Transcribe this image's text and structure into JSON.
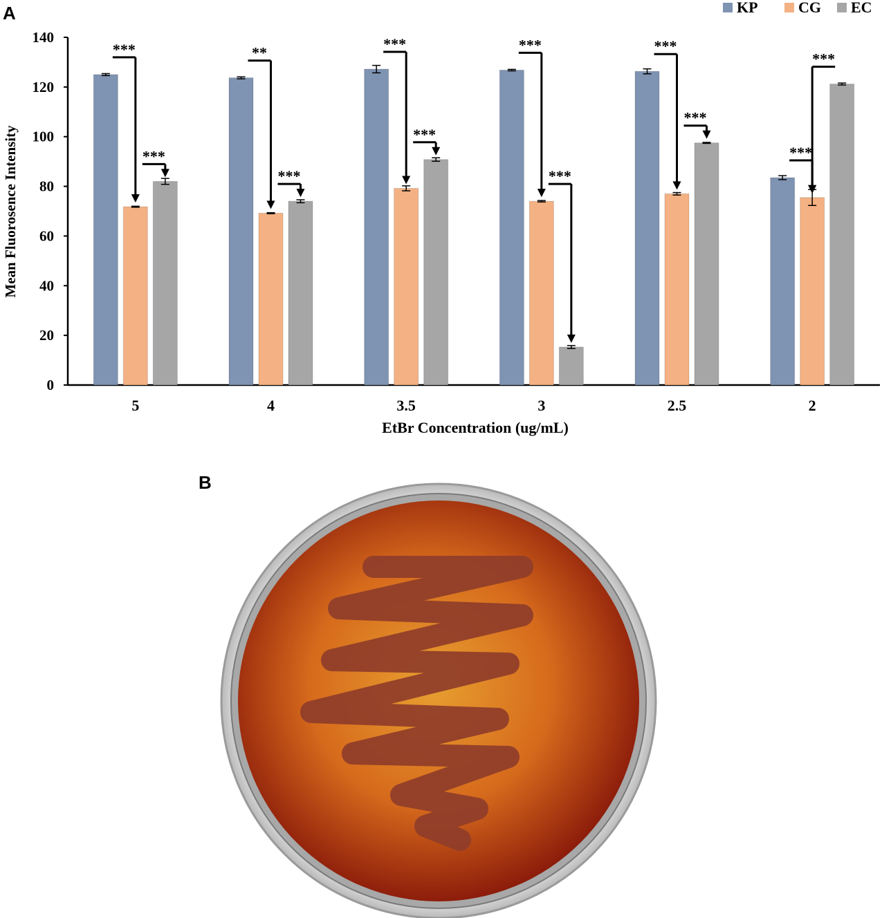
{
  "figure": {
    "panel_a_label": "A",
    "panel_b_label": "B"
  },
  "chart_data": {
    "type": "bar",
    "title": "",
    "xlabel": "EtBr Concentration (ug/mL)",
    "ylabel": "Mean Fluorosence Intensity",
    "ylim": [
      0,
      140
    ],
    "yticks": [
      0,
      20,
      40,
      60,
      80,
      100,
      120,
      140
    ],
    "categories": [
      "5",
      "4",
      "3.5",
      "3",
      "2.5",
      "2"
    ],
    "legend_position": "top-right",
    "grid": false,
    "series": [
      {
        "name": "KP",
        "color": "#7f93b2",
        "values": [
          125,
          123.7,
          127.2,
          126.8,
          126.3,
          83.5
        ],
        "errors": [
          0.4,
          0.4,
          1.5,
          0.3,
          1.0,
          0.8
        ]
      },
      {
        "name": "CG",
        "color": "#f4b183",
        "values": [
          71.8,
          69.2,
          79.2,
          74.0,
          77.0,
          75.5
        ],
        "errors": [
          0.2,
          0.2,
          1.0,
          0.3,
          0.5,
          3.2
        ]
      },
      {
        "name": "EC",
        "color": "#a6a6a6",
        "values": [
          82.0,
          74.0,
          90.8,
          15.3,
          97.5,
          121.2
        ],
        "errors": [
          1.2,
          0.6,
          0.7,
          0.6,
          0.2,
          0.4
        ]
      }
    ],
    "annotations": [
      {
        "category": 0,
        "from": 0,
        "to": 1,
        "label": "***"
      },
      {
        "category": 0,
        "from": 1,
        "to": 2,
        "label": "***"
      },
      {
        "category": 1,
        "from": 0,
        "to": 1,
        "label": "**"
      },
      {
        "category": 1,
        "from": 1,
        "to": 2,
        "label": "***"
      },
      {
        "category": 2,
        "from": 0,
        "to": 1,
        "label": "***"
      },
      {
        "category": 2,
        "from": 1,
        "to": 2,
        "label": "***"
      },
      {
        "category": 3,
        "from": 0,
        "to": 1,
        "label": "***"
      },
      {
        "category": 3,
        "from": 1,
        "to": 2,
        "label": "***"
      },
      {
        "category": 4,
        "from": 0,
        "to": 1,
        "label": "***"
      },
      {
        "category": 4,
        "from": 1,
        "to": 2,
        "label": "***"
      },
      {
        "category": 5,
        "from": 0,
        "to": 1,
        "label": "***"
      },
      {
        "category": 5,
        "from": 2,
        "to": 1,
        "label": "***"
      }
    ]
  },
  "photo": {
    "subject": "petri-dish-streak",
    "colors": {
      "agar_center": "#e8a030",
      "agar_mid": "#d66a1c",
      "agar_edge": "#8a1a0a",
      "streak": "#8f3d2a",
      "rim": "#d8d8d8"
    }
  }
}
